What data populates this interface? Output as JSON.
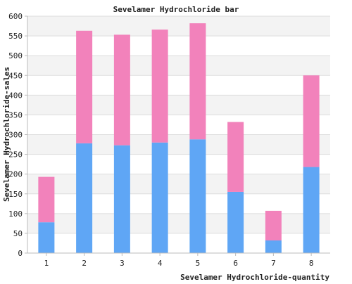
{
  "chart_data": {
    "type": "bar",
    "stacked": true,
    "title": "Sevelamer Hydrochloride bar",
    "xlabel": "Sevelamer Hydrochloride-quantity",
    "ylabel": "Sevelamer Hydrochloride-sales",
    "categories": [
      "1",
      "2",
      "3",
      "4",
      "5",
      "6",
      "7",
      "8"
    ],
    "series": [
      {
        "values": [
          78,
          278,
          273,
          280,
          288,
          155,
          32,
          218
        ],
        "color": "#5fa6f5"
      },
      {
        "values": [
          115,
          285,
          280,
          286,
          294,
          177,
          75,
          232
        ],
        "color": "#f282bb"
      }
    ],
    "ylim": [
      0,
      600
    ],
    "yticks": [
      0,
      50,
      100,
      150,
      200,
      250,
      300,
      350,
      400,
      450,
      500,
      550,
      600
    ],
    "grid": true,
    "band_colors": [
      "#ffffff",
      "#f3f3f3"
    ],
    "grid_color": "#dddddd",
    "axis_color": "#bbbbbb"
  }
}
